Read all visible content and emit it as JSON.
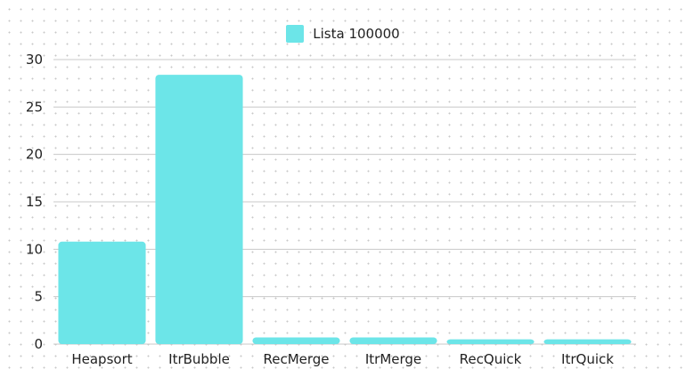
{
  "chart_data": {
    "type": "bar",
    "categories": [
      "Heapsort",
      "ItrBubble",
      "RecMerge",
      "ItrMerge",
      "RecQuick",
      "ItrQuick"
    ],
    "series": [
      {
        "name": "Lista 100000",
        "values": [
          10.8,
          28.4,
          0.7,
          0.7,
          0.5,
          0.5
        ],
        "color": "#6ce5e8"
      }
    ],
    "yticks": [
      0,
      5,
      10,
      15,
      20,
      25,
      30
    ],
    "ylim": [
      0,
      30
    ],
    "grid": true,
    "legend_position": "top-center",
    "gridline_color": "#c8c8c8"
  }
}
